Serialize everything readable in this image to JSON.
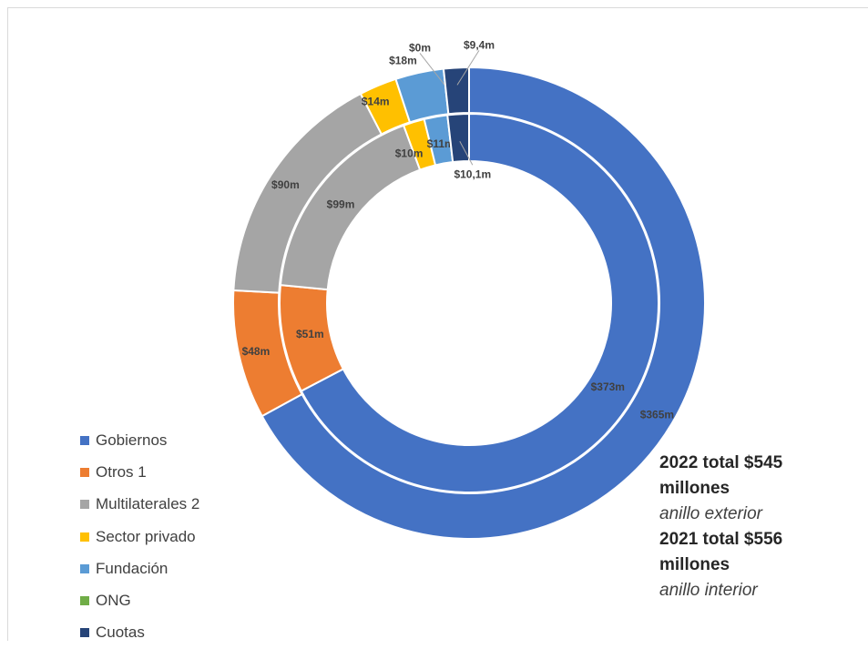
{
  "chart_data": {
    "type": "donut",
    "series": [
      {
        "ring": "inner",
        "values": [
          373,
          51,
          99,
          10,
          11,
          0,
          10.1
        ],
        "labels": [
          "$373m",
          "$51m",
          "$99m",
          "$10m",
          "$11m",
          "",
          "$10,1m"
        ]
      },
      {
        "ring": "outer",
        "values": [
          365,
          48,
          90,
          14,
          18,
          0,
          9.4
        ],
        "labels": [
          "$365m",
          "$48m",
          "$90m",
          "$14m",
          "$18m",
          "$0m",
          "$9,4m"
        ]
      }
    ],
    "categories": [
      "Gobiernos",
      "Otros 1",
      "Multilaterales 2",
      "Sector privado",
      "Fundación",
      "ONG",
      "Cuotas"
    ],
    "colors": [
      "#4472C4",
      "#ED7D31",
      "#A5A5A5",
      "#FFC000",
      "#5B9BD5",
      "#70AD47",
      "#264478"
    ],
    "legend_position": "bottom-left"
  },
  "legend": {
    "items": [
      {
        "label": "Gobiernos",
        "color": "#4472C4"
      },
      {
        "label": "Otros 1",
        "color": "#ED7D31"
      },
      {
        "label": "Multilaterales 2",
        "color": "#A5A5A5"
      },
      {
        "label": "Sector privado",
        "color": "#FFC000"
      },
      {
        "label": "Fundación",
        "color": "#5B9BD5"
      },
      {
        "label": "ONG",
        "color": "#70AD47"
      },
      {
        "label": "Cuotas",
        "color": "#264478"
      }
    ]
  },
  "totals": {
    "line1": "2022  total $545",
    "line2": "millones",
    "line3": "anillo exterior",
    "line4": "2021 total $556",
    "line5": "millones",
    "line6": "anillo interior"
  }
}
